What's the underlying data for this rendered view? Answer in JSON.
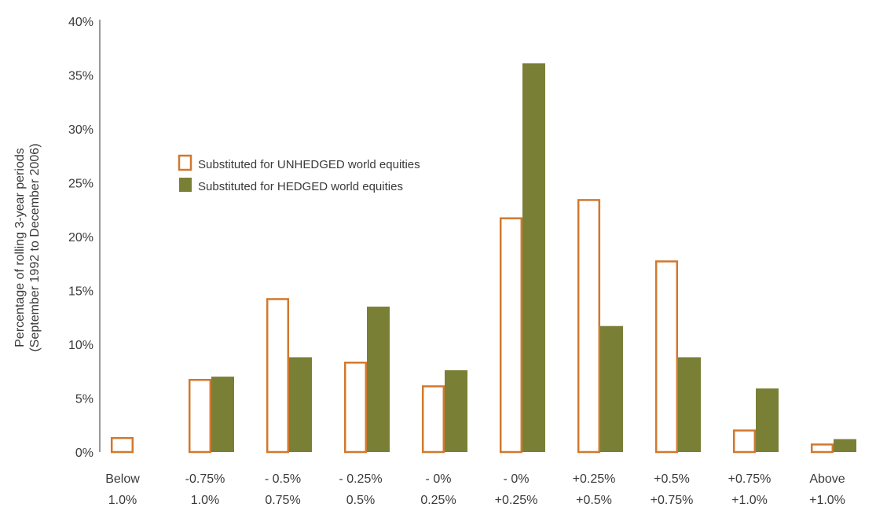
{
  "chart_data": {
    "type": "bar",
    "ylabel_lines": [
      "Percentage of rolling 3-year periods",
      "(September 1992 to December 2006)"
    ],
    "categories": [
      [
        "Below",
        "1.0%"
      ],
      [
        "-0.75%",
        "1.0%"
      ],
      [
        "- 0.5%",
        "0.75%"
      ],
      [
        "- 0.25%",
        "0.5%"
      ],
      [
        "- 0%",
        "0.25%"
      ],
      [
        "- 0%",
        "+0.25%"
      ],
      [
        "+0.25%",
        "+0.5%"
      ],
      [
        "+0.5%",
        "+0.75%"
      ],
      [
        "+0.75%",
        "+1.0%"
      ],
      [
        "Above",
        "+1.0%"
      ]
    ],
    "series": [
      {
        "name": "Substituted for UNHEDGED world equities",
        "style": "outline",
        "color": "#d2782d",
        "values": [
          1.3,
          6.7,
          14.2,
          8.3,
          6.1,
          21.7,
          23.4,
          17.7,
          2.0,
          0.7
        ]
      },
      {
        "name": "Substituted for HEDGED world equities",
        "style": "filled",
        "color": "#7a7f36",
        "values": [
          0,
          7.0,
          8.8,
          13.5,
          7.6,
          36.1,
          11.7,
          8.8,
          5.9,
          1.2
        ]
      }
    ],
    "yticks": [
      "0%",
      "5%",
      "10%",
      "15%",
      "20%",
      "25%",
      "30%",
      "35%",
      "40%"
    ],
    "ylim": [
      0,
      40
    ],
    "grid": false,
    "legend_position": "upper-left inside plot"
  }
}
